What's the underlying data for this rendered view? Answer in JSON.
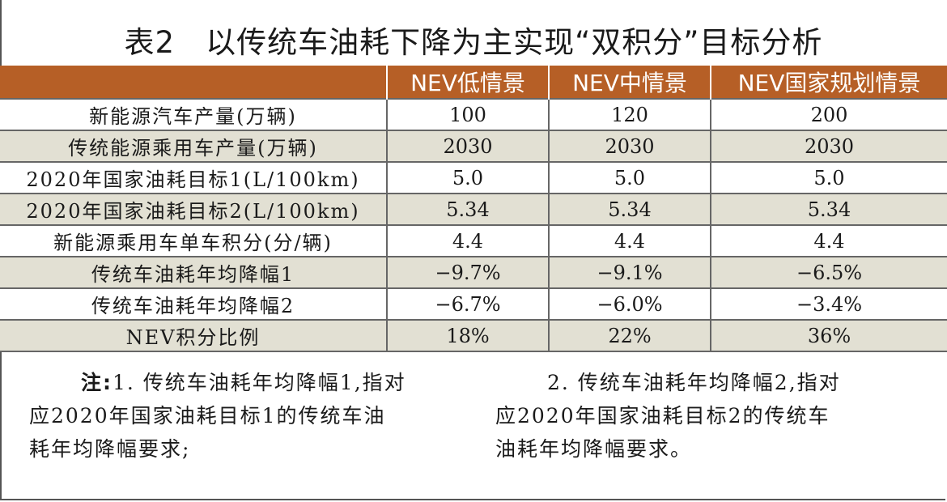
{
  "title": "表2　以传统车油耗下降为主实现“双积分”目标分析",
  "table": {
    "headers": [
      "",
      "NEV低情景",
      "NEV中情景",
      "NEV国家规划情景"
    ],
    "rows": [
      [
        "新能源汽车产量(万辆)",
        "100",
        "120",
        "200"
      ],
      [
        "传统能源乘用车产量(万辆)",
        "2030",
        "2030",
        "2030"
      ],
      [
        "2020年国家油耗目标1(L/100km)",
        "5.0",
        "5.0",
        "5.0"
      ],
      [
        "2020年国家油耗目标2(L/100km)",
        "5.34",
        "5.34",
        "5.34"
      ],
      [
        "新能源乘用车单车积分(分/辆)",
        "4.4",
        "4.4",
        "4.4"
      ],
      [
        "传统车油耗年均降幅1",
        "−9.7%",
        "−9.1%",
        "−6.5%"
      ],
      [
        "传统车油耗年均降幅2",
        "−6.7%",
        "−6.0%",
        "−3.4%"
      ],
      [
        "NEV积分比例",
        "18%",
        "22%",
        "36%"
      ]
    ],
    "colors": {
      "header_bg": "#b65f26",
      "stripe_bg": "#e2e0d3"
    }
  },
  "notes": {
    "label": "注:",
    "note1_line1": "1. 传统车油耗年均降幅1,指对",
    "note1_line2": "应2020年国家油耗目标1的传统车油",
    "note1_line3": "耗年均降幅要求;",
    "note2_line1": "2. 传统车油耗年均降幅2,指对",
    "note2_line2": "应2020年国家油耗目标2的传统车",
    "note2_line3": "油耗年均降幅要求。"
  }
}
